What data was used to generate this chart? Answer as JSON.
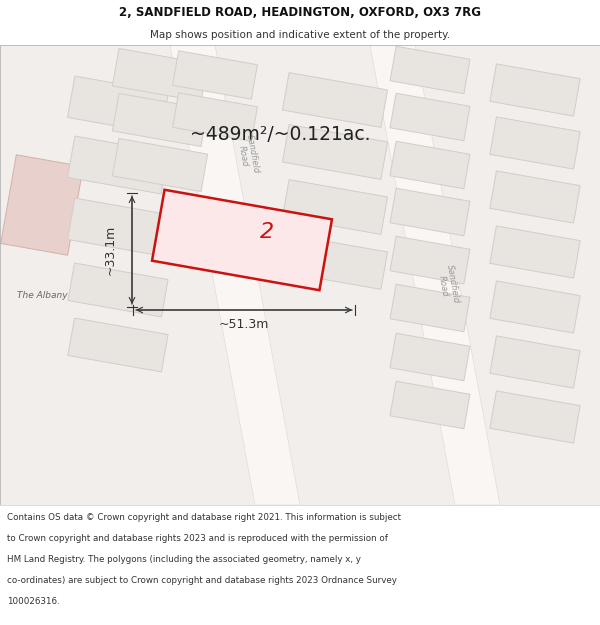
{
  "title_line1": "2, SANDFIELD ROAD, HEADINGTON, OXFORD, OX3 7RG",
  "title_line2": "Map shows position and indicative extent of the property.",
  "area_text": "~489m²/~0.121ac.",
  "label_width": "~51.3m",
  "label_height": "~33.1m",
  "property_label": "2",
  "footer_lines": [
    "Contains OS data © Crown copyright and database right 2021. This information is subject",
    "to Crown copyright and database rights 2023 and is reproduced with the permission of",
    "HM Land Registry. The polygons (including the associated geometry, namely x, y",
    "co-ordinates) are subject to Crown copyright and database rights 2023 Ordnance Survey",
    "100026316."
  ],
  "bg_color": "#f2eeec",
  "road_color": "#f7f4f2",
  "block_fill": "#e8e4e0",
  "block_edge": "#d4ccc8",
  "highlight_fill": "#fce8e8",
  "highlight_edge": "#cc1111",
  "albany_fill": "#e8d0cc",
  "albany_edge": "#d4b0a8",
  "dim_color": "#333333",
  "area_color": "#222222",
  "road_band_fill": "#f9f6f4",
  "road_band_edge": "#e0d8d4"
}
